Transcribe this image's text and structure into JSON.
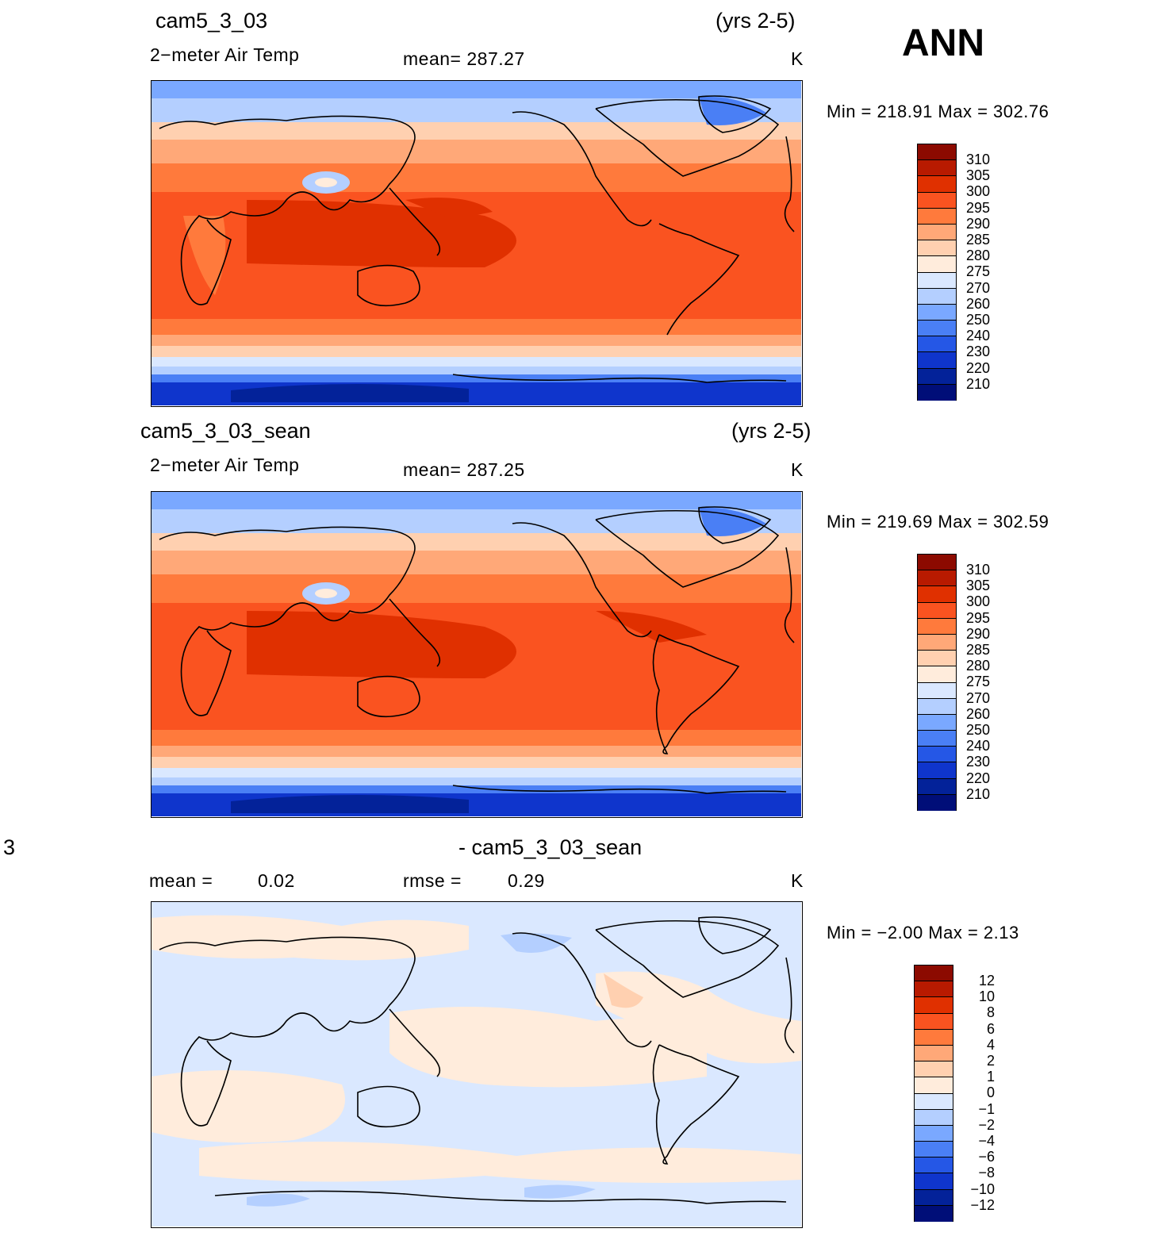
{
  "season": "ANN",
  "panels": [
    {
      "case": "cam5_3_03",
      "years": "(yrs 2-5)",
      "variable": "2−meter Air Temp",
      "mean_text": "mean=  287.27",
      "units": "K",
      "minmax": "Min  =  218.91  Max  =  302.76",
      "levels": [
        "310",
        "305",
        "300",
        "295",
        "290",
        "285",
        "280",
        "275",
        "270",
        "260",
        "250",
        "240",
        "230",
        "220",
        "210"
      ]
    },
    {
      "case": "cam5_3_03_sean",
      "years": "(yrs 2-5)",
      "variable": "2−meter Air Temp",
      "mean_text": "mean=  287.25",
      "units": "K",
      "minmax": "Min  =  219.69  Max  =  302.59",
      "levels": [
        "310",
        "305",
        "300",
        "295",
        "290",
        "285",
        "280",
        "275",
        "270",
        "260",
        "250",
        "240",
        "230",
        "220",
        "210"
      ]
    },
    {
      "case_left": "3",
      "case": "- cam5_3_03_sean",
      "mean_label": "mean =",
      "mean_value": "0.02",
      "rmse_label": "rmse =",
      "rmse_value": "0.29",
      "units": "K",
      "minmax": "Min  =     −2.00  Max  =      2.13",
      "levels": [
        "12",
        "10",
        "8",
        "6",
        "4",
        "2",
        "1",
        "0",
        "−1",
        "−2",
        "−4",
        "−6",
        "−8",
        "−10",
        "−12"
      ]
    }
  ],
  "colors": {
    "scale": [
      "#8c0a00",
      "#b81a00",
      "#e03000",
      "#fa5320",
      "#ff7a3c",
      "#ffa878",
      "#ffd0b0",
      "#ffecdc",
      "#dae8ff",
      "#b4cfff",
      "#7aa8ff",
      "#4a7ff5",
      "#2557e6",
      "#0f35cc",
      "#032299",
      "#000e78"
    ]
  }
}
